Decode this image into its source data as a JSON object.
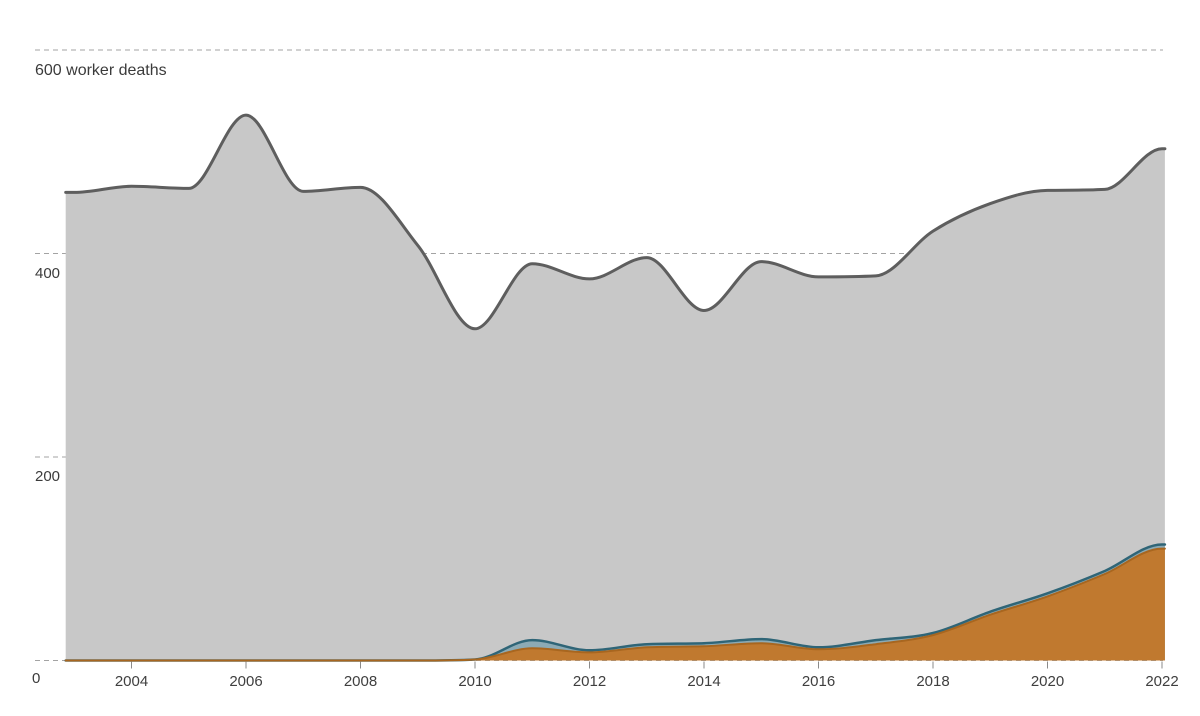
{
  "chart_data": {
    "type": "area",
    "title": "",
    "subtitle": "",
    "legend": "none",
    "grid": "horizontal-dashed",
    "xlim": [
      2002.85,
      2022.05
    ],
    "ylim": [
      0,
      612
    ],
    "x": [
      2003,
      2004,
      2005,
      2006,
      2007,
      2008,
      2009,
      2010,
      2011,
      2012,
      2013,
      2014,
      2015,
      2016,
      2017,
      2018,
      2019,
      2020,
      2021,
      2022
    ],
    "series": [
      {
        "id": "gray",
        "name": "gray-area-total-worker-deaths",
        "stacked": false,
        "values": [
          460,
          466,
          464,
          536,
          461,
          465,
          408,
          326,
          390,
          375,
          396,
          344,
          392,
          377,
          378,
          422,
          449,
          462,
          463,
          503
        ]
      },
      {
        "id": "orange",
        "name": "orange-area",
        "stacked": true,
        "values": [
          0,
          0,
          0,
          0,
          0,
          0,
          0,
          1,
          12,
          8,
          13,
          14,
          17,
          11,
          16,
          25,
          45,
          63,
          85,
          110
        ]
      },
      {
        "id": "teal",
        "name": "teal-band-stacked-on-orange",
        "stacked": true,
        "values": [
          0,
          0,
          0,
          0,
          0,
          0,
          0,
          0,
          8,
          2,
          3,
          3,
          4,
          2,
          4,
          2,
          3,
          3,
          3,
          4
        ]
      }
    ],
    "y_gridlines": [
      {
        "value": 600,
        "label": "600 worker deaths"
      },
      {
        "value": 400,
        "label": "400"
      },
      {
        "value": 200,
        "label": "200"
      },
      {
        "value": 0,
        "label": "0"
      }
    ],
    "x_ticks": [
      {
        "year": 2004,
        "label": "2004"
      },
      {
        "year": 2006,
        "label": "2006"
      },
      {
        "year": 2008,
        "label": "2008"
      },
      {
        "year": 2010,
        "label": "2010"
      },
      {
        "year": 2012,
        "label": "2012"
      },
      {
        "year": 2014,
        "label": "2014"
      },
      {
        "year": 2016,
        "label": "2016"
      },
      {
        "year": 2018,
        "label": "2018"
      },
      {
        "year": 2020,
        "label": "2020"
      },
      {
        "year": 2022,
        "label": "2022"
      }
    ]
  },
  "colors": {
    "background": "#ffffff",
    "gray_fill": "#c8c8c8",
    "gray_stroke": "#5e5e5e",
    "teal_fill": "#8caab4",
    "teal_stroke": "#2f6577",
    "orange_fill": "#c0792f",
    "orange_stroke": "#a8661f",
    "gridline": "#a3a3a3",
    "tick": "#8a8a8a",
    "axis_text": "#3f3f3f"
  }
}
